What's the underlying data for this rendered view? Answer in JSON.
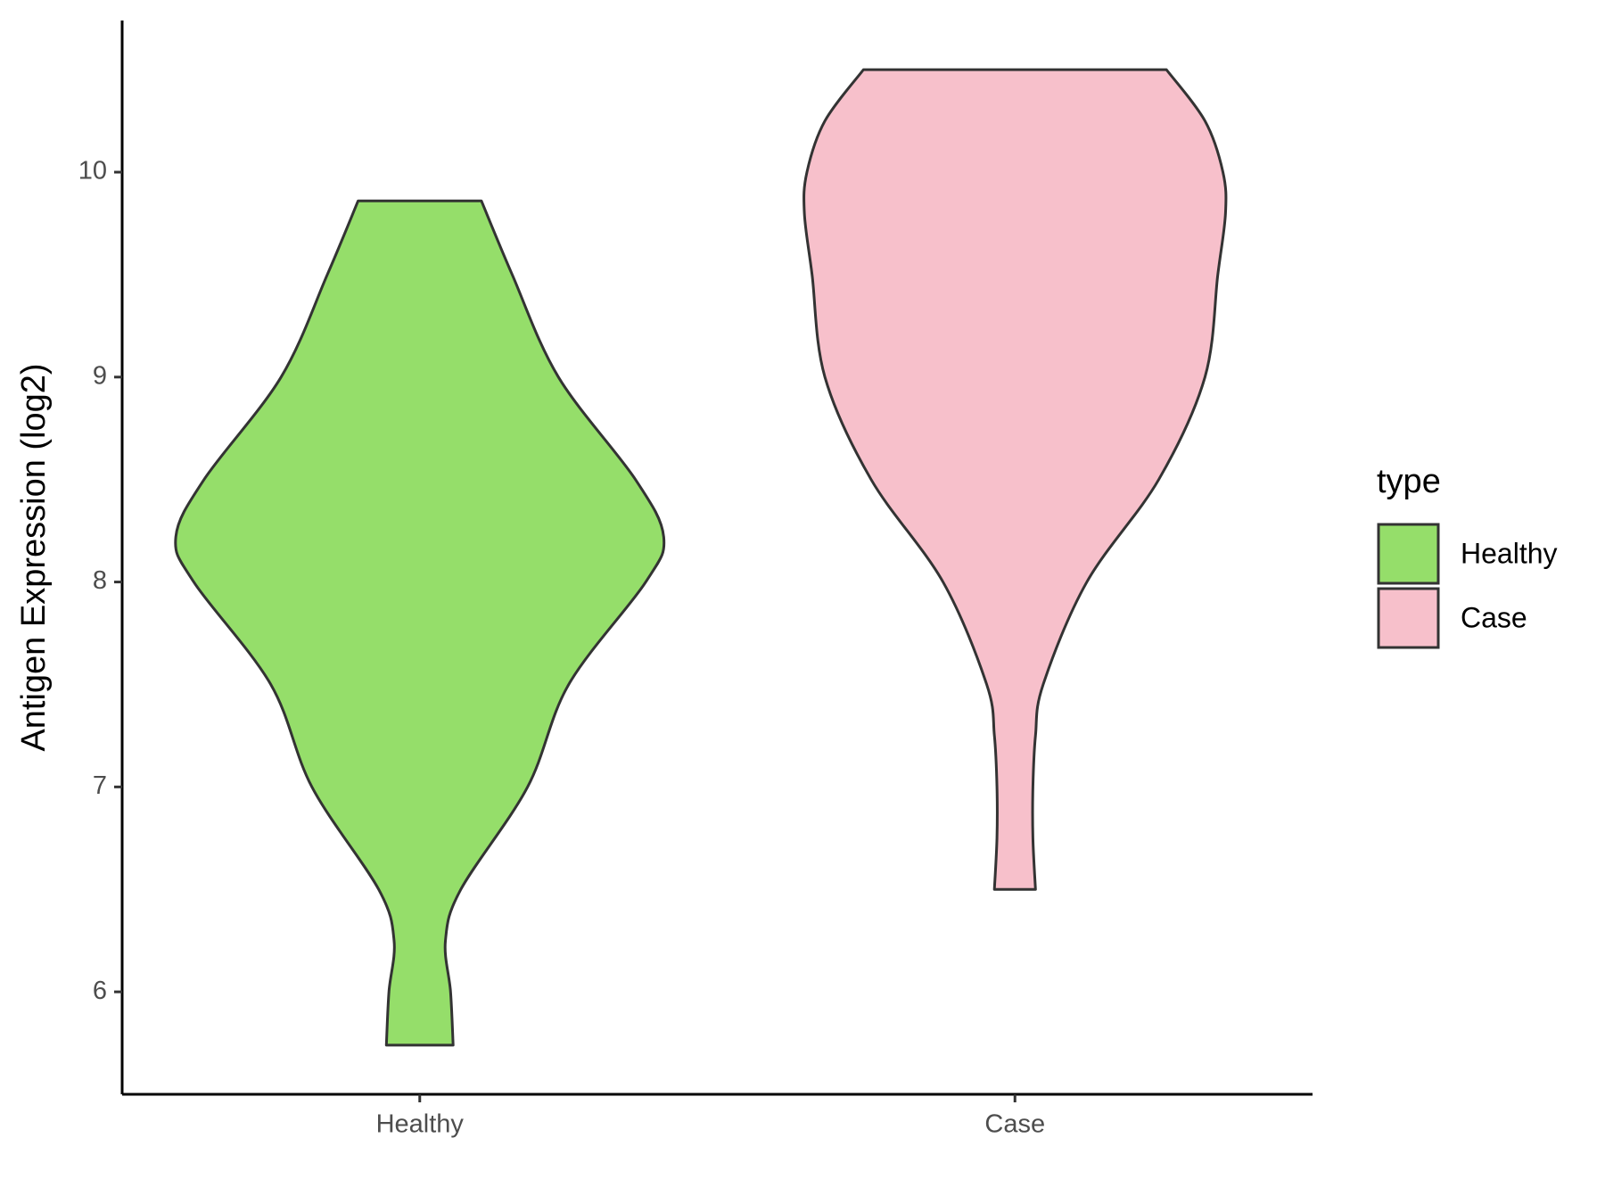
{
  "chart_data": {
    "type": "violin",
    "y_label": "Antigen Expression (log2)",
    "categories": [
      "Healthy",
      "Case"
    ],
    "legend_title": "type",
    "ylim": [
      5.5,
      10.74
    ],
    "yticks": [
      6,
      7,
      8,
      9,
      10
    ],
    "series": [
      {
        "name": "Healthy",
        "color": "#95de6a",
        "y": [
          5.74,
          6.0,
          6.25,
          6.5,
          7.0,
          7.5,
          8.0,
          8.22,
          8.5,
          9.0,
          9.5,
          9.86
        ],
        "density": [
          0.13,
          0.12,
          0.1,
          0.16,
          0.42,
          0.58,
          0.88,
          0.95,
          0.84,
          0.54,
          0.36,
          0.24
        ]
      },
      {
        "name": "Case",
        "color": "#f7c0cb",
        "y": [
          6.5,
          6.75,
          7.0,
          7.25,
          7.5,
          8.0,
          8.5,
          9.0,
          9.5,
          9.8,
          10.0,
          10.25,
          10.5
        ],
        "density": [
          0.08,
          0.07,
          0.07,
          0.08,
          0.11,
          0.28,
          0.56,
          0.74,
          0.79,
          0.82,
          0.81,
          0.74,
          0.59
        ]
      }
    ]
  }
}
